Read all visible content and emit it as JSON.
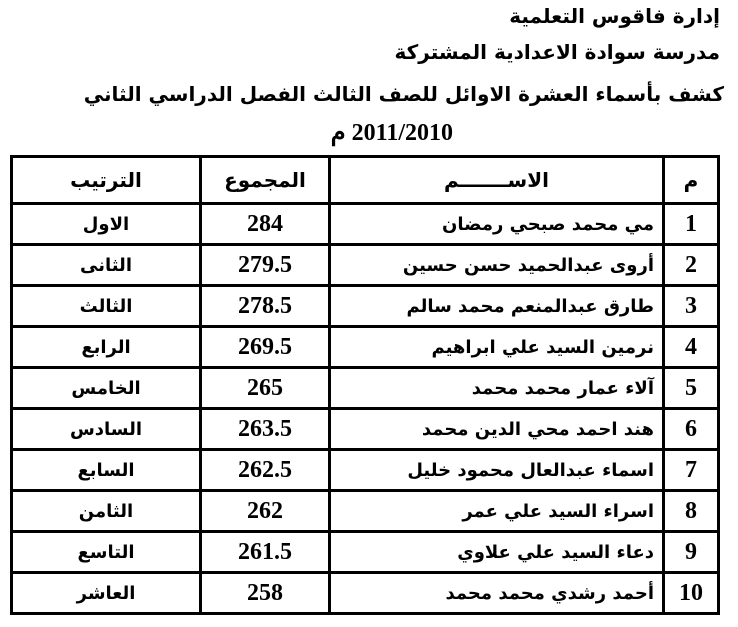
{
  "header": {
    "lines": [
      "إدارة فاقوس التعلمية",
      "مدرسة سوادة الاعدادية المشتركة",
      "كشف بأسماء العشرة الاوائل للصف الثالث الفصل الدراسي الثاني",
      "2011/2010 م"
    ]
  },
  "table": {
    "columns": [
      "م",
      "الاســـــــم",
      "المجموع",
      "الترتيب"
    ],
    "rows": [
      [
        1,
        "مي محمد صبحي رمضان",
        284,
        "الاول"
      ],
      [
        2,
        "أروى عبدالحميد حسن حسين",
        279.5,
        "الثانى"
      ],
      [
        3,
        "طارق عبدالمنعم محمد سالم",
        278.5,
        "الثالث"
      ],
      [
        4,
        "نرمين السيد علي ابراهيم",
        269.5,
        "الرابع"
      ],
      [
        5,
        "آلاء عمار محمد محمد",
        265,
        "الخامس"
      ],
      [
        6,
        "هند احمد محي الدين محمد",
        263.5,
        "السادس"
      ],
      [
        7,
        "اسماء عبدالعال محمود خليل",
        262.5,
        "السابع"
      ],
      [
        8,
        "اسراء السيد علي عمر",
        262,
        "الثامن"
      ],
      [
        9,
        "دعاء السيد علي علاوي",
        261.5,
        "التاسع"
      ],
      [
        10,
        "أحمد رشدي محمد محمد",
        258,
        "العاشر"
      ]
    ]
  }
}
